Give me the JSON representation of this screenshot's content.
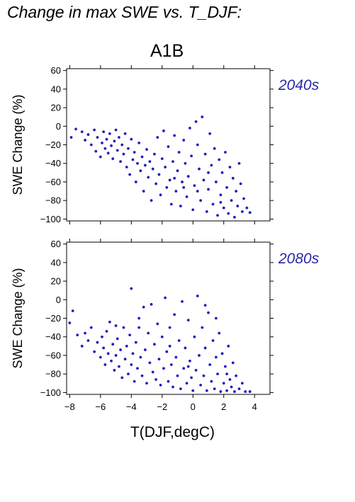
{
  "title": "Change in max SWE vs. T_DJF:",
  "scenario": "A1B",
  "colors": {
    "points": "#1f1fbf",
    "period_label": "#2929a8",
    "axis": "#000000"
  },
  "chart_data": [
    {
      "type": "scatter",
      "panel_label": "2040s",
      "ylabel": "SWE Change (%)",
      "xlabel": "",
      "xlim": [
        -8.2,
        5
      ],
      "ylim": [
        -102,
        62
      ],
      "xticks": [
        -8,
        -6,
        -4,
        -2,
        0,
        2,
        4
      ],
      "yticks": [
        60,
        40,
        20,
        0,
        -20,
        -40,
        -60,
        -80,
        -100
      ],
      "yticklabels": [
        "60",
        "40",
        "20",
        "0",
        "−20",
        "−40",
        "−60",
        "−80",
        "−100"
      ],
      "show_xticklabels": false,
      "grid": false,
      "points": [
        [
          -7.9,
          -12
        ],
        [
          -7.6,
          -3
        ],
        [
          -7.2,
          -6
        ],
        [
          -7.0,
          -15
        ],
        [
          -6.8,
          -9
        ],
        [
          -6.6,
          -20
        ],
        [
          -6.4,
          -4
        ],
        [
          -6.3,
          -27
        ],
        [
          -6.2,
          -12
        ],
        [
          -6.0,
          -33
        ],
        [
          -5.9,
          -18
        ],
        [
          -5.8,
          -6
        ],
        [
          -5.7,
          -24
        ],
        [
          -5.6,
          -14
        ],
        [
          -5.5,
          -29
        ],
        [
          -5.4,
          -8
        ],
        [
          -5.3,
          -21
        ],
        [
          -5.2,
          -35
        ],
        [
          -5.1,
          -16
        ],
        [
          -5.0,
          -4
        ],
        [
          -4.9,
          -26
        ],
        [
          -4.8,
          -12
        ],
        [
          -4.7,
          -38
        ],
        [
          -4.6,
          -20
        ],
        [
          -4.5,
          -30
        ],
        [
          -4.4,
          -8
        ],
        [
          -4.3,
          -44
        ],
        [
          -4.2,
          -24
        ],
        [
          -4.1,
          -52
        ],
        [
          -4.0,
          -14
        ],
        [
          -3.9,
          -36
        ],
        [
          -3.8,
          -28
        ],
        [
          -3.7,
          -60
        ],
        [
          -3.6,
          -40
        ],
        [
          -3.5,
          -18
        ],
        [
          -3.4,
          -48
        ],
        [
          -3.3,
          -33
        ],
        [
          -3.2,
          -70
        ],
        [
          -3.1,
          -42
        ],
        [
          -3.0,
          -25
        ],
        [
          -2.9,
          -55
        ],
        [
          -2.8,
          -38
        ],
        [
          -2.7,
          -80
        ],
        [
          -2.6,
          -46
        ],
        [
          -2.5,
          -30
        ],
        [
          -2.4,
          -62
        ],
        [
          -2.3,
          -12
        ],
        [
          -2.2,
          -52
        ],
        [
          -2.1,
          -74
        ],
        [
          -2.0,
          -35
        ],
        [
          -1.9,
          -5
        ],
        [
          -1.8,
          -44
        ],
        [
          -1.7,
          -66
        ],
        [
          -1.6,
          -22
        ],
        [
          -1.5,
          -58
        ],
        [
          -1.4,
          -84
        ],
        [
          -1.3,
          -38
        ],
        [
          -1.2,
          -10
        ],
        [
          -1.1,
          -70
        ],
        [
          -1.0,
          -48
        ],
        [
          -0.9,
          -28
        ],
        [
          -0.8,
          -86
        ],
        [
          -0.7,
          -60
        ],
        [
          -0.6,
          -15
        ],
        [
          -0.5,
          -40
        ],
        [
          -0.4,
          -76
        ],
        [
          -0.3,
          -54
        ],
        [
          -0.2,
          -2
        ],
        [
          -0.1,
          -32
        ],
        [
          0.0,
          -90
        ],
        [
          0.1,
          -64
        ],
        [
          0.2,
          5
        ],
        [
          0.3,
          -20
        ],
        [
          0.4,
          -46
        ],
        [
          0.5,
          -80
        ],
        [
          0.6,
          10
        ],
        [
          0.7,
          -58
        ],
        [
          0.8,
          -30
        ],
        [
          0.9,
          -92
        ],
        [
          1.0,
          -68
        ],
        [
          1.1,
          -8
        ],
        [
          1.2,
          -42
        ],
        [
          1.3,
          -84
        ],
        [
          1.4,
          -24
        ],
        [
          1.5,
          -60
        ],
        [
          1.6,
          -96
        ],
        [
          1.7,
          -36
        ],
        [
          1.8,
          -74
        ],
        [
          1.9,
          -50
        ],
        [
          2.0,
          -88
        ],
        [
          2.1,
          -28
        ],
        [
          2.2,
          -66
        ],
        [
          2.3,
          -94
        ],
        [
          2.4,
          -44
        ],
        [
          2.5,
          -80
        ],
        [
          2.6,
          -56
        ],
        [
          2.7,
          -98
        ],
        [
          2.8,
          -70
        ],
        [
          2.9,
          -86
        ],
        [
          3.0,
          -40
        ],
        [
          3.1,
          -62
        ],
        [
          3.2,
          -92
        ],
        [
          3.3,
          -78
        ],
        [
          3.5,
          -88
        ],
        [
          3.7,
          -93
        ],
        [
          -1.2,
          -56
        ],
        [
          -0.6,
          -66
        ],
        [
          0.3,
          -70
        ],
        [
          1.0,
          -50
        ],
        [
          1.8,
          -82
        ]
      ]
    },
    {
      "type": "scatter",
      "panel_label": "2080s",
      "ylabel": "SWE Change (%)",
      "xlabel": "T(DJF,degC)",
      "xlim": [
        -8.2,
        5
      ],
      "ylim": [
        -102,
        62
      ],
      "xticks": [
        -8,
        -6,
        -4,
        -2,
        0,
        2,
        4
      ],
      "xticklabels": [
        "−8",
        "−6",
        "−4",
        "−2",
        "0",
        "2",
        "4"
      ],
      "yticks": [
        60,
        40,
        20,
        0,
        -20,
        -40,
        -60,
        -80,
        -100
      ],
      "yticklabels": [
        "60",
        "40",
        "20",
        "0",
        "−20",
        "−40",
        "−60",
        "−80",
        "−100"
      ],
      "show_xticklabels": true,
      "grid": false,
      "points": [
        [
          -8.0,
          -25
        ],
        [
          -7.8,
          -12
        ],
        [
          -7.5,
          -38
        ],
        [
          -7.2,
          -50
        ],
        [
          -7.0,
          -36
        ],
        [
          -6.8,
          -44
        ],
        [
          -6.6,
          -30
        ],
        [
          -6.4,
          -56
        ],
        [
          -6.2,
          -46
        ],
        [
          -6.0,
          -62
        ],
        [
          -5.9,
          -40
        ],
        [
          -5.8,
          -52
        ],
        [
          -5.7,
          -70
        ],
        [
          -5.6,
          -34
        ],
        [
          -5.5,
          -58
        ],
        [
          -5.4,
          -24
        ],
        [
          -5.3,
          -66
        ],
        [
          -5.2,
          -48
        ],
        [
          -5.1,
          -76
        ],
        [
          -5.0,
          -60
        ],
        [
          -4.9,
          -42
        ],
        [
          -4.8,
          -72
        ],
        [
          -4.7,
          -54
        ],
        [
          -4.6,
          -84
        ],
        [
          -4.5,
          -30
        ],
        [
          -4.4,
          -64
        ],
        [
          -4.3,
          -50
        ],
        [
          -4.2,
          -80
        ],
        [
          -4.1,
          -38
        ],
        [
          -4.0,
          -70
        ],
        [
          -3.9,
          -58
        ],
        [
          -3.8,
          -88
        ],
        [
          -3.7,
          -46
        ],
        [
          -3.6,
          -74
        ],
        [
          -3.5,
          -20
        ],
        [
          -3.4,
          -62
        ],
        [
          -3.3,
          -82
        ],
        [
          -3.2,
          -8
        ],
        [
          -3.1,
          -54
        ],
        [
          -3.0,
          -90
        ],
        [
          -2.9,
          -36
        ],
        [
          -2.8,
          -68
        ],
        [
          -2.7,
          -5
        ],
        [
          -2.6,
          -78
        ],
        [
          -2.5,
          -48
        ],
        [
          -2.4,
          -86
        ],
        [
          -2.3,
          -26
        ],
        [
          -2.2,
          -64
        ],
        [
          -2.1,
          -92
        ],
        [
          -2.0,
          -40
        ],
        [
          -1.9,
          -74
        ],
        [
          -1.8,
          2
        ],
        [
          -1.7,
          -56
        ],
        [
          -1.6,
          -88
        ],
        [
          -1.5,
          -30
        ],
        [
          -1.4,
          -70
        ],
        [
          -1.3,
          -94
        ],
        [
          -1.2,
          -16
        ],
        [
          -1.1,
          -62
        ],
        [
          -1.0,
          -82
        ],
        [
          -0.9,
          -44
        ],
        [
          -0.8,
          -96
        ],
        [
          -0.7,
          -2
        ],
        [
          -0.6,
          -74
        ],
        [
          -0.5,
          -52
        ],
        [
          -0.4,
          -90
        ],
        [
          -0.3,
          -22
        ],
        [
          -0.2,
          -66
        ],
        [
          -0.1,
          -84
        ],
        [
          0.0,
          -98
        ],
        [
          0.1,
          -40
        ],
        [
          0.2,
          -76
        ],
        [
          0.3,
          4
        ],
        [
          0.4,
          -60
        ],
        [
          0.5,
          -92
        ],
        [
          0.6,
          -30
        ],
        [
          0.7,
          -82
        ],
        [
          0.8,
          -52
        ],
        [
          0.9,
          -98
        ],
        [
          1.0,
          -14
        ],
        [
          1.1,
          -70
        ],
        [
          1.2,
          -88
        ],
        [
          1.3,
          -44
        ],
        [
          1.4,
          -96
        ],
        [
          1.5,
          -62
        ],
        [
          1.6,
          -80
        ],
        [
          1.7,
          -36
        ],
        [
          1.8,
          -99
        ],
        [
          1.9,
          -58
        ],
        [
          2.0,
          -90
        ],
        [
          2.1,
          -72
        ],
        [
          2.2,
          -98
        ],
        [
          2.3,
          -50
        ],
        [
          2.4,
          -86
        ],
        [
          2.5,
          -94
        ],
        [
          2.6,
          -68
        ],
        [
          2.7,
          -99
        ],
        [
          2.8,
          -82
        ],
        [
          3.0,
          -96
        ],
        [
          3.2,
          -90
        ],
        [
          3.4,
          -99
        ],
        [
          3.7,
          -99
        ],
        [
          -3.5,
          -30
        ],
        [
          -4.0,
          12
        ],
        [
          -1.5,
          -50
        ],
        [
          -0.3,
          -72
        ],
        [
          0.8,
          -6
        ],
        [
          1.5,
          -20
        ],
        [
          2.2,
          -80
        ],
        [
          -5.0,
          -28
        ]
      ]
    }
  ]
}
